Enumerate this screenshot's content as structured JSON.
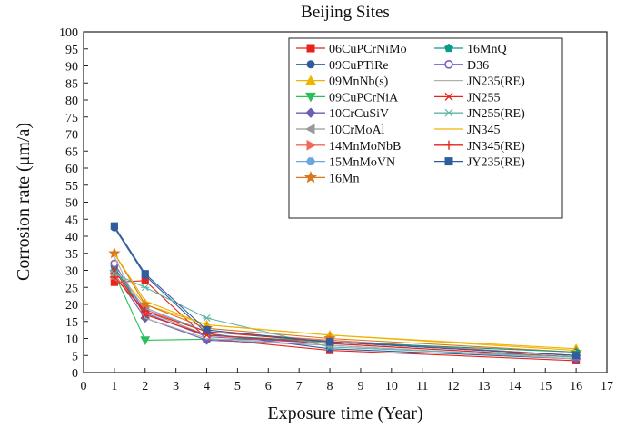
{
  "chart_data": {
    "type": "line",
    "title": "Beijing Sites",
    "xlabel": "Exposure time (Year)",
    "ylabel": "Corrosion rate (μm/a)",
    "xlim": [
      0,
      17
    ],
    "ylim": [
      0,
      100
    ],
    "xticks": [
      0,
      1,
      2,
      3,
      4,
      5,
      6,
      7,
      8,
      9,
      10,
      11,
      12,
      13,
      14,
      15,
      16,
      17
    ],
    "yticks": [
      0,
      5,
      10,
      15,
      20,
      25,
      30,
      35,
      40,
      45,
      50,
      55,
      60,
      65,
      70,
      75,
      80,
      85,
      90,
      95,
      100
    ],
    "grid": false,
    "legend_position": "top-right",
    "x": [
      1,
      2,
      4,
      8,
      16
    ],
    "series": [
      {
        "name": "06CuPCrNiMo",
        "color": "#e8231c",
        "marker": "square",
        "values": [
          26.5,
          27,
          10,
          6.5,
          3.5
        ]
      },
      {
        "name": "09CuPTiRe",
        "color": "#2f5d9e",
        "marker": "circle",
        "values": [
          42.5,
          28.5,
          11.5,
          7,
          4
        ]
      },
      {
        "name": "09MnNb(s)",
        "color": "#f0b400",
        "marker": "triangle-up",
        "values": [
          30,
          20,
          14,
          11,
          7
        ]
      },
      {
        "name": "09CuPCrNiA",
        "color": "#2bbf5b",
        "marker": "triangle-down",
        "values": [
          29,
          9.5,
          9.8,
          9.5,
          5
        ]
      },
      {
        "name": "10CrCuSiV",
        "color": "#6a5fb0",
        "marker": "diamond",
        "values": [
          29,
          16,
          9.5,
          8,
          4
        ]
      },
      {
        "name": "10CrMoAl",
        "color": "#9a9a9a",
        "marker": "triangle-left",
        "values": [
          28,
          18,
          11,
          9,
          5
        ]
      },
      {
        "name": "14MnMoNbB",
        "color": "#f06a5a",
        "marker": "triangle-right",
        "values": [
          28.5,
          18.5,
          12,
          9.5,
          5
        ]
      },
      {
        "name": "15MnMoVN",
        "color": "#6aa8e0",
        "marker": "hexagon",
        "values": [
          30,
          19,
          12,
          9,
          5
        ]
      },
      {
        "name": "16Mn",
        "color": "#d9761e",
        "marker": "star",
        "values": [
          35,
          20,
          13,
          10,
          6
        ]
      },
      {
        "name": "16MnQ",
        "color": "#0c9a8a",
        "marker": "pentagon",
        "values": [
          31,
          17,
          11,
          9,
          6
        ]
      },
      {
        "name": "D36",
        "color": "#7b5fc4",
        "marker": "open-circle",
        "values": [
          32,
          17.5,
          10.5,
          8.5,
          4.5
        ]
      },
      {
        "name": "JN235(RE)",
        "color": "#b0b0b0",
        "marker": "none",
        "values": [
          34,
          16,
          10,
          8,
          4
        ]
      },
      {
        "name": "JN255",
        "color": "#e8231c",
        "marker": "x",
        "values": [
          30,
          17,
          11,
          8.5,
          4.5
        ]
      },
      {
        "name": "JN255(RE)",
        "color": "#5fb5a5",
        "marker": "asterisk",
        "values": [
          29,
          25,
          16,
          7.5,
          4.5
        ]
      },
      {
        "name": "JN345",
        "color": "#f0b400",
        "marker": "none",
        "values": [
          35,
          21,
          14,
          11,
          6.5
        ]
      },
      {
        "name": "JN345(RE)",
        "color": "#e8231c",
        "marker": "plus",
        "values": [
          28,
          18,
          12,
          9,
          5
        ]
      },
      {
        "name": "JY235(RE)",
        "color": "#2f5d9e",
        "marker": "square",
        "values": [
          43,
          29,
          12.5,
          9,
          5
        ]
      }
    ]
  }
}
